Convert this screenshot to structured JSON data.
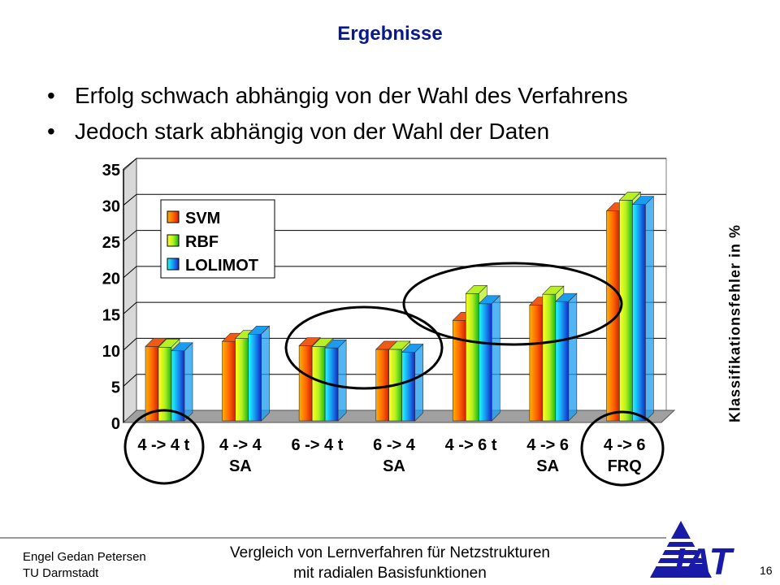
{
  "slide": {
    "title": "Ergebnisse",
    "bullets": [
      "Erfolg schwach abhängig von der Wahl des Verfahrens",
      "Jedoch stark abhängig von der Wahl der Daten"
    ],
    "bullet_symbol": "•"
  },
  "chart_data": {
    "type": "bar",
    "categories": [
      [
        "4 -> 4 t",
        ""
      ],
      [
        "4 -> 4",
        "SA"
      ],
      [
        "6 -> 4 t",
        ""
      ],
      [
        "6 -> 4",
        "SA"
      ],
      [
        "4 -> 6 t",
        ""
      ],
      [
        "4 -> 6",
        "SA"
      ],
      [
        "4 -> 6",
        "FRQ"
      ]
    ],
    "series": [
      {
        "name": "SVM",
        "values": [
          10.5,
          11.2,
          10.6,
          10.1,
          14.1,
          16.2,
          29.2
        ],
        "color": "#f05a14"
      },
      {
        "name": "RBF",
        "values": [
          10.4,
          11.6,
          10.5,
          10.1,
          17.8,
          17.7,
          30.7
        ],
        "color": "#b8f028"
      },
      {
        "name": "LOLIMOT",
        "values": [
          9.9,
          12.2,
          10.3,
          9.7,
          16.4,
          16.7,
          30.1
        ],
        "color": "#1a9cf0"
      }
    ],
    "ylabel": "Klassifikationsfehler in %",
    "ylim": [
      0,
      35
    ],
    "yticks": [
      0,
      5,
      10,
      15,
      20,
      25,
      30,
      35
    ],
    "grid": true,
    "legend_position": "top-left",
    "annotations": [
      "circle around 4 -> 4 t",
      "circle around 6 -> 4 t and 6 -> 4 SA",
      "ellipse around 4 -> 6 t and 4 -> 6 SA",
      "circle around 4 -> 6 FRQ"
    ]
  },
  "footer": {
    "authors": "Engel Gedan Petersen",
    "institution": "TU Darmstadt",
    "title_line1": "Vergleich von Lernverfahren für Netzstrukturen",
    "title_line2": "mit radialen Basisfunktionen",
    "page": "16",
    "logo_text": "IAT"
  }
}
